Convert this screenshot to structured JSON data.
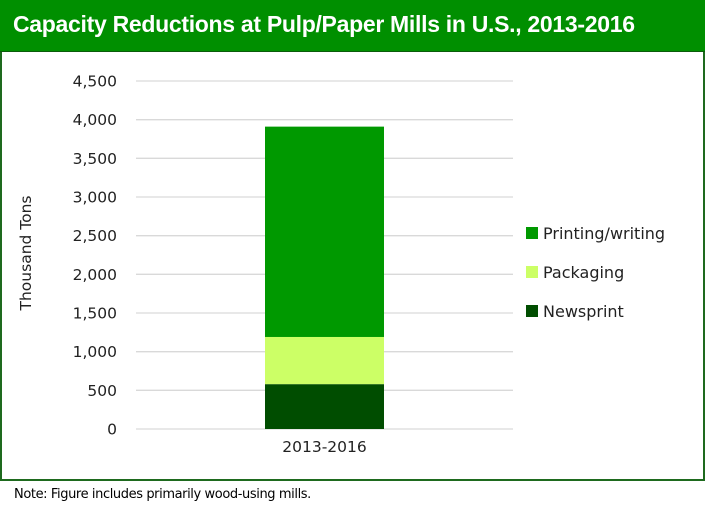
{
  "chart_data": {
    "type": "bar",
    "stacked": true,
    "title": "Capacity Reductions at Pulp/Paper Mills in U.S., 2013-2016",
    "xlabel": "",
    "ylabel": "Thousand Tons",
    "ylim": [
      0,
      4500
    ],
    "yticks": [
      0,
      500,
      1000,
      1500,
      2000,
      2500,
      3000,
      3500,
      4000,
      4500
    ],
    "ytick_labels": [
      "0",
      "500",
      "1,000",
      "1,500",
      "2,000",
      "2,500",
      "3,000",
      "3,500",
      "4,000",
      "4,500"
    ],
    "grid": true,
    "legend_position": "right",
    "categories": [
      "2013-2016"
    ],
    "series": [
      {
        "name": "Newsprint",
        "values": [
          580
        ],
        "color": "#004d00"
      },
      {
        "name": "Packaging",
        "values": [
          610
        ],
        "color": "#ccff66"
      },
      {
        "name": "Printing/writing",
        "values": [
          2720
        ],
        "color": "#009900"
      }
    ],
    "legend_order": [
      "Printing/writing",
      "Packaging",
      "Newsprint"
    ]
  },
  "note": "Note: Figure includes primarily wood-using mills.",
  "colors": {
    "title_bar": "#008f00",
    "frame": "#1e6a1e",
    "gridline": "#d9d9d9"
  }
}
